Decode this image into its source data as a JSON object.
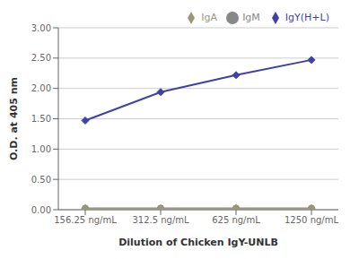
{
  "chart_data": {
    "type": "line",
    "xlabel": "Dilution of Chicken IgY-UNLB",
    "ylabel": "O.D. at 405 nm",
    "categories": [
      "156.25 ng/mL",
      "312.5 ng/mL",
      "625 ng/mL",
      "1250 ng/mL"
    ],
    "series": [
      {
        "name": "IgY(H+L)",
        "color": "#4040AA",
        "marker": "diamond",
        "values": [
          1.47,
          1.94,
          2.22,
          2.47
        ]
      },
      {
        "name": "IgM",
        "color": "#888888",
        "marker": "circle",
        "values": [
          0.025,
          0.025,
          0.025,
          0.025
        ]
      },
      {
        "name": "IgA",
        "color": "#999977",
        "marker": "diamond",
        "values": [
          0.02,
          0.02,
          0.02,
          0.02
        ]
      }
    ],
    "ylim": [
      0.0,
      3.0
    ],
    "yticks": [
      {
        "value": 0.0,
        "label": "0.00"
      },
      {
        "value": 0.5,
        "label": "0.50"
      },
      {
        "value": 1.0,
        "label": "1.00"
      },
      {
        "value": 1.5,
        "label": "1.50"
      },
      {
        "value": 2.0,
        "label": "2.00"
      },
      {
        "value": 2.5,
        "label": "2.50"
      },
      {
        "value": 3.0,
        "label": "3.00"
      }
    ],
    "grid": true,
    "legend": "upper right"
  }
}
